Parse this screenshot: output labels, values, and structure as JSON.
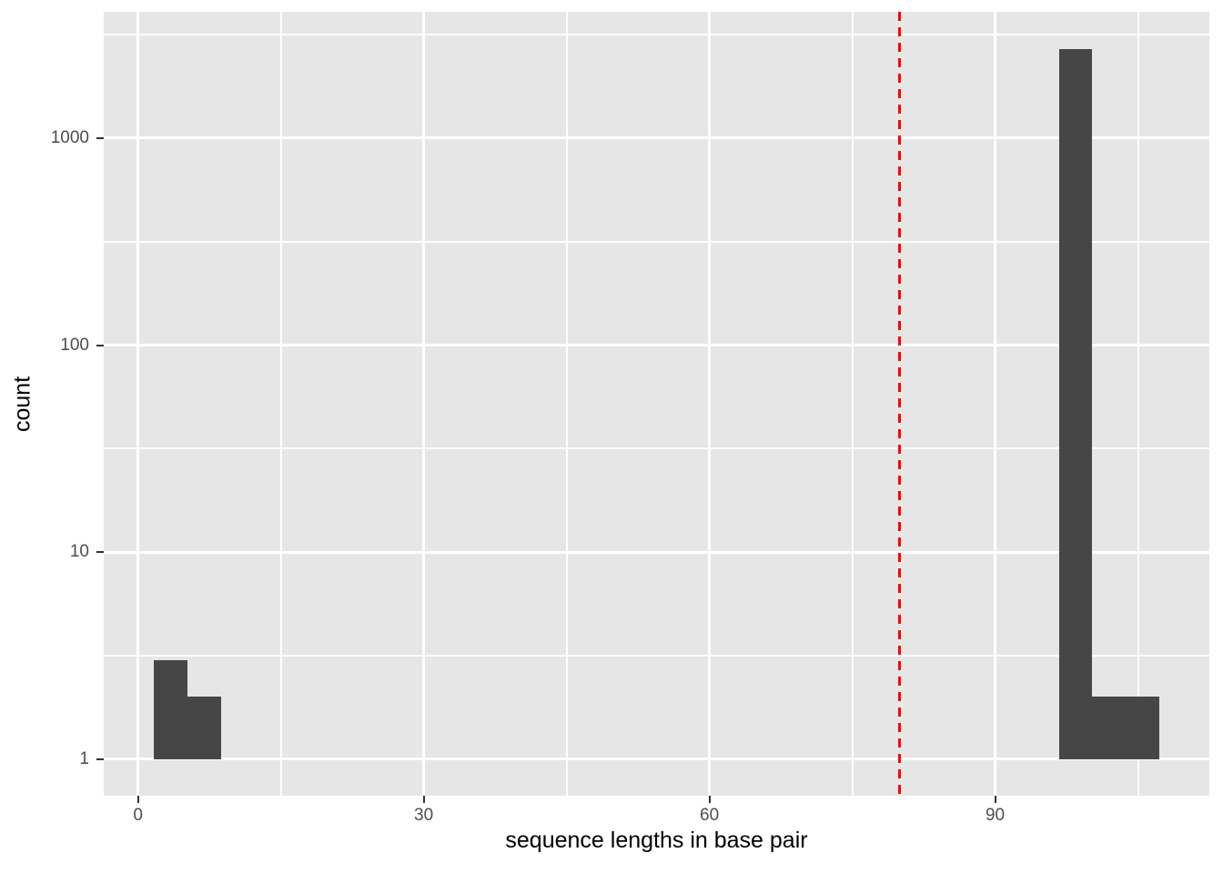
{
  "chart_data": {
    "type": "bar",
    "subtype": "histogram",
    "title": "",
    "xlabel": "sequence lengths in base pair",
    "ylabel": "count",
    "legend": "none",
    "grid": "on",
    "y_scale": "log10",
    "x_ticks": [
      0,
      30,
      60,
      90
    ],
    "x_minor_ticks": [
      15,
      45,
      75,
      105
    ],
    "y_ticks": [
      1,
      10,
      100,
      1000
    ],
    "y_tick_labels": [
      "1",
      "10",
      "100",
      "1000"
    ],
    "y_minor_ticks": [
      3.162,
      31.62,
      316.2,
      3162
    ],
    "x_domain": [
      -3.6,
      112.5
    ],
    "y_domain": [
      0.667,
      4074
    ],
    "baseline_count": 1,
    "bins": [
      {
        "x0": 1.7,
        "x1": 5.2,
        "count": 3
      },
      {
        "x0": 5.2,
        "x1": 8.7,
        "count": 2
      },
      {
        "x0": 96.7,
        "x1": 100.2,
        "count": 2700
      },
      {
        "x0": 100.2,
        "x1": 103.7,
        "count": 2
      },
      {
        "x0": 103.7,
        "x1": 107.2,
        "count": 2
      }
    ],
    "vline": {
      "x": 80,
      "color": "#FF0000",
      "style": "dashed"
    },
    "colors": {
      "panel_bg": "#E6E6E6",
      "grid": "#FFFFFF",
      "bar": "#464646",
      "tick_mark": "#333333",
      "tick_label": "#4D4D4D",
      "axis_title": "#000000",
      "figure_bg": "#FFFFFF"
    }
  }
}
